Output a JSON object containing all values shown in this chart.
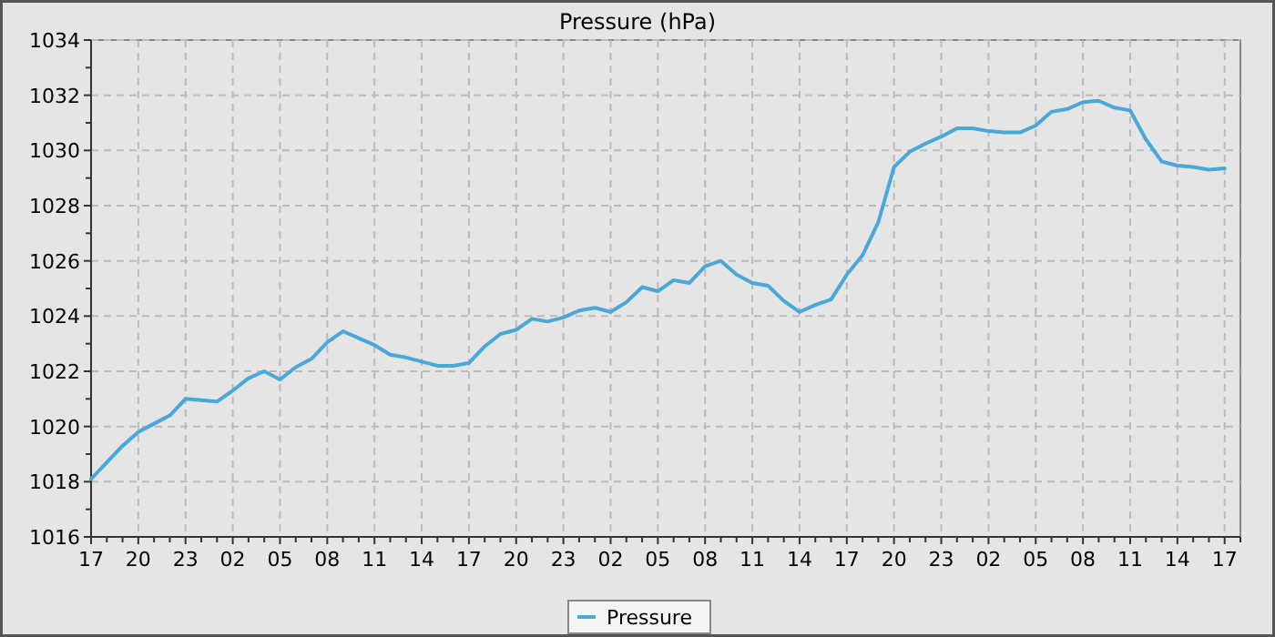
{
  "chart_data": {
    "type": "line",
    "title": "Pressure (hPa)",
    "categories": [
      "17",
      null,
      null,
      "20",
      null,
      null,
      "23",
      null,
      null,
      "02",
      null,
      null,
      "05",
      null,
      null,
      "08",
      null,
      null,
      "11",
      null,
      null,
      "14",
      null,
      null,
      "17",
      null,
      null,
      "20",
      null,
      null,
      "23",
      null,
      null,
      "02",
      null,
      null,
      "05",
      null,
      null,
      "08",
      null,
      null,
      "11",
      null,
      null,
      "14",
      null,
      null,
      "17",
      null,
      null,
      "20",
      null,
      null,
      "23",
      null,
      null,
      "02",
      null,
      null,
      "05",
      null,
      null,
      "08",
      null,
      null,
      "11",
      null,
      null,
      "14",
      null,
      null,
      "17",
      null
    ],
    "ylim": [
      1016,
      1034
    ],
    "yticks": [
      1016,
      {
        "value": 1017,
        "label": null
      },
      1018,
      {
        "value": 1019,
        "label": null
      },
      1020,
      {
        "value": 1021,
        "label": null
      },
      1022,
      {
        "value": 1023,
        "label": null
      },
      1024,
      {
        "value": 1025,
        "label": null
      },
      1026,
      {
        "value": 1027,
        "label": null
      },
      1028,
      {
        "value": 1029,
        "label": null
      },
      1030,
      {
        "value": 1031,
        "label": null
      },
      1032,
      {
        "value": 1033,
        "label": null
      },
      1034
    ],
    "grid": true,
    "legend": "bottom",
    "marker": "none",
    "line_style": "solid",
    "series": [
      {
        "name": "Pressure",
        "color": "#4aa8d8",
        "values": [
          1018.1,
          1018.7,
          1019.3,
          1019.8,
          1020.1,
          1020.4,
          1021.0,
          1020.95,
          1020.9,
          1021.3,
          1021.75,
          1022.0,
          1021.7,
          1022.15,
          1022.45,
          1023.05,
          1023.45,
          1023.2,
          1022.95,
          1022.6,
          1022.5,
          1022.35,
          1022.2,
          1022.2,
          1022.3,
          1022.9,
          1023.35,
          1023.5,
          1023.9,
          1023.8,
          1023.95,
          1024.2,
          1024.3,
          1024.15,
          1024.5,
          1025.05,
          1024.9,
          1025.3,
          1025.2,
          1025.8,
          1026.0,
          1025.5,
          1025.2,
          1025.1,
          1024.55,
          1024.15,
          1024.4,
          1024.6,
          1025.5,
          1026.2,
          1027.4,
          1029.4,
          1029.95,
          1030.25,
          1030.5,
          1030.8,
          1030.8,
          1030.7,
          1030.65,
          1030.65,
          1030.9,
          1031.4,
          1031.5,
          1031.75,
          1031.8,
          1031.55,
          1031.45,
          1030.4,
          1029.6,
          1029.45,
          1029.4,
          1029.3,
          1029.35,
          null
        ]
      }
    ]
  }
}
